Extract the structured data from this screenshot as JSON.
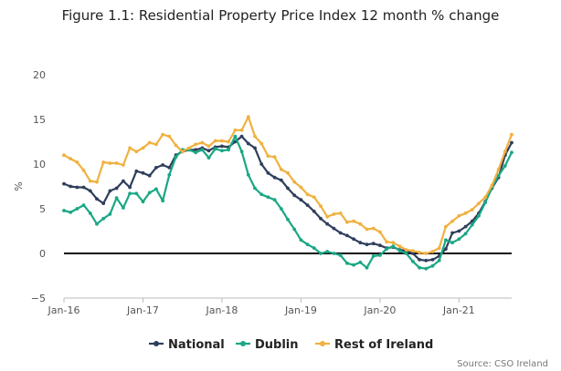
{
  "title": "Figure 1.1: Residential Property Price Index 12 month % change",
  "source": "Source: CSO Ireland",
  "colors": {
    "National": "#2f3e5c",
    "Dublin": "#1aa784",
    "Rest of Ireland": "#f0b140"
  },
  "chart_data": {
    "type": "line",
    "title": "Figure 1.1: Residential Property Price Index 12 month % change",
    "xlabel": "",
    "ylabel": "%",
    "ylim": [
      -5,
      20
    ],
    "yticks": [
      "−5",
      "0",
      "5",
      "10",
      "15",
      "20"
    ],
    "xtick_labels": [
      "Jan-16",
      "Jan-17",
      "Jan-18",
      "Jan-19",
      "Jan-20",
      "Jan-21"
    ],
    "x_start": "Jan-16",
    "x_end": "Sep-21",
    "legend_position": "bottom",
    "grid": false,
    "series": [
      {
        "name": "National",
        "values": [
          7.8,
          7.5,
          7.4,
          7.4,
          7.0,
          6.1,
          5.6,
          7.0,
          7.3,
          8.1,
          7.4,
          9.2,
          9.0,
          8.7,
          9.6,
          9.9,
          9.6,
          11.0,
          11.4,
          11.6,
          11.6,
          11.8,
          11.5,
          11.9,
          12.0,
          11.9,
          12.5,
          13.1,
          12.3,
          11.8,
          10.0,
          9.0,
          8.5,
          8.2,
          7.3,
          6.5,
          6.0,
          5.4,
          4.7,
          3.9,
          3.3,
          2.8,
          2.3,
          2.0,
          1.6,
          1.2,
          1.0,
          1.1,
          0.9,
          0.6,
          0.7,
          0.4,
          0.3,
          0.0,
          -0.7,
          -0.8,
          -0.7,
          -0.3,
          0.5,
          2.3,
          2.5,
          3.0,
          3.6,
          4.5,
          5.8,
          7.3,
          8.5,
          11.0,
          12.4
        ]
      },
      {
        "name": "Dublin",
        "values": [
          4.8,
          4.6,
          5.0,
          5.4,
          4.5,
          3.3,
          3.9,
          4.4,
          6.2,
          5.1,
          6.7,
          6.7,
          5.8,
          6.8,
          7.2,
          5.9,
          8.8,
          10.8,
          11.6,
          11.6,
          11.3,
          11.6,
          10.7,
          11.7,
          11.5,
          11.6,
          13.1,
          11.4,
          8.8,
          7.3,
          6.6,
          6.3,
          6.0,
          5.0,
          3.8,
          2.7,
          1.5,
          1.0,
          0.6,
          0.0,
          0.2,
          0.0,
          -0.2,
          -1.1,
          -1.3,
          -1.0,
          -1.6,
          -0.3,
          -0.2,
          0.5,
          0.8,
          0.3,
          0.0,
          -0.9,
          -1.6,
          -1.7,
          -1.4,
          -0.8,
          1.5,
          1.2,
          1.6,
          2.2,
          3.2,
          4.2,
          5.7,
          7.4,
          8.7,
          9.8,
          11.3
        ]
      },
      {
        "name": "Rest of Ireland",
        "values": [
          11.0,
          10.6,
          10.2,
          9.3,
          8.1,
          8.0,
          10.2,
          10.1,
          10.1,
          9.9,
          11.8,
          11.4,
          11.8,
          12.4,
          12.2,
          13.3,
          13.1,
          12.1,
          11.4,
          11.8,
          12.2,
          12.4,
          12.0,
          12.6,
          12.6,
          12.5,
          13.8,
          13.8,
          15.3,
          13.1,
          12.3,
          10.9,
          10.8,
          9.4,
          9.0,
          8.0,
          7.4,
          6.6,
          6.3,
          5.3,
          4.1,
          4.4,
          4.5,
          3.5,
          3.6,
          3.3,
          2.7,
          2.8,
          2.4,
          1.3,
          1.2,
          0.8,
          0.4,
          0.3,
          0.1,
          0.0,
          0.2,
          0.6,
          3.0,
          3.6,
          4.2,
          4.5,
          4.9,
          5.6,
          6.3,
          7.6,
          9.4,
          11.4,
          13.3
        ]
      }
    ]
  }
}
